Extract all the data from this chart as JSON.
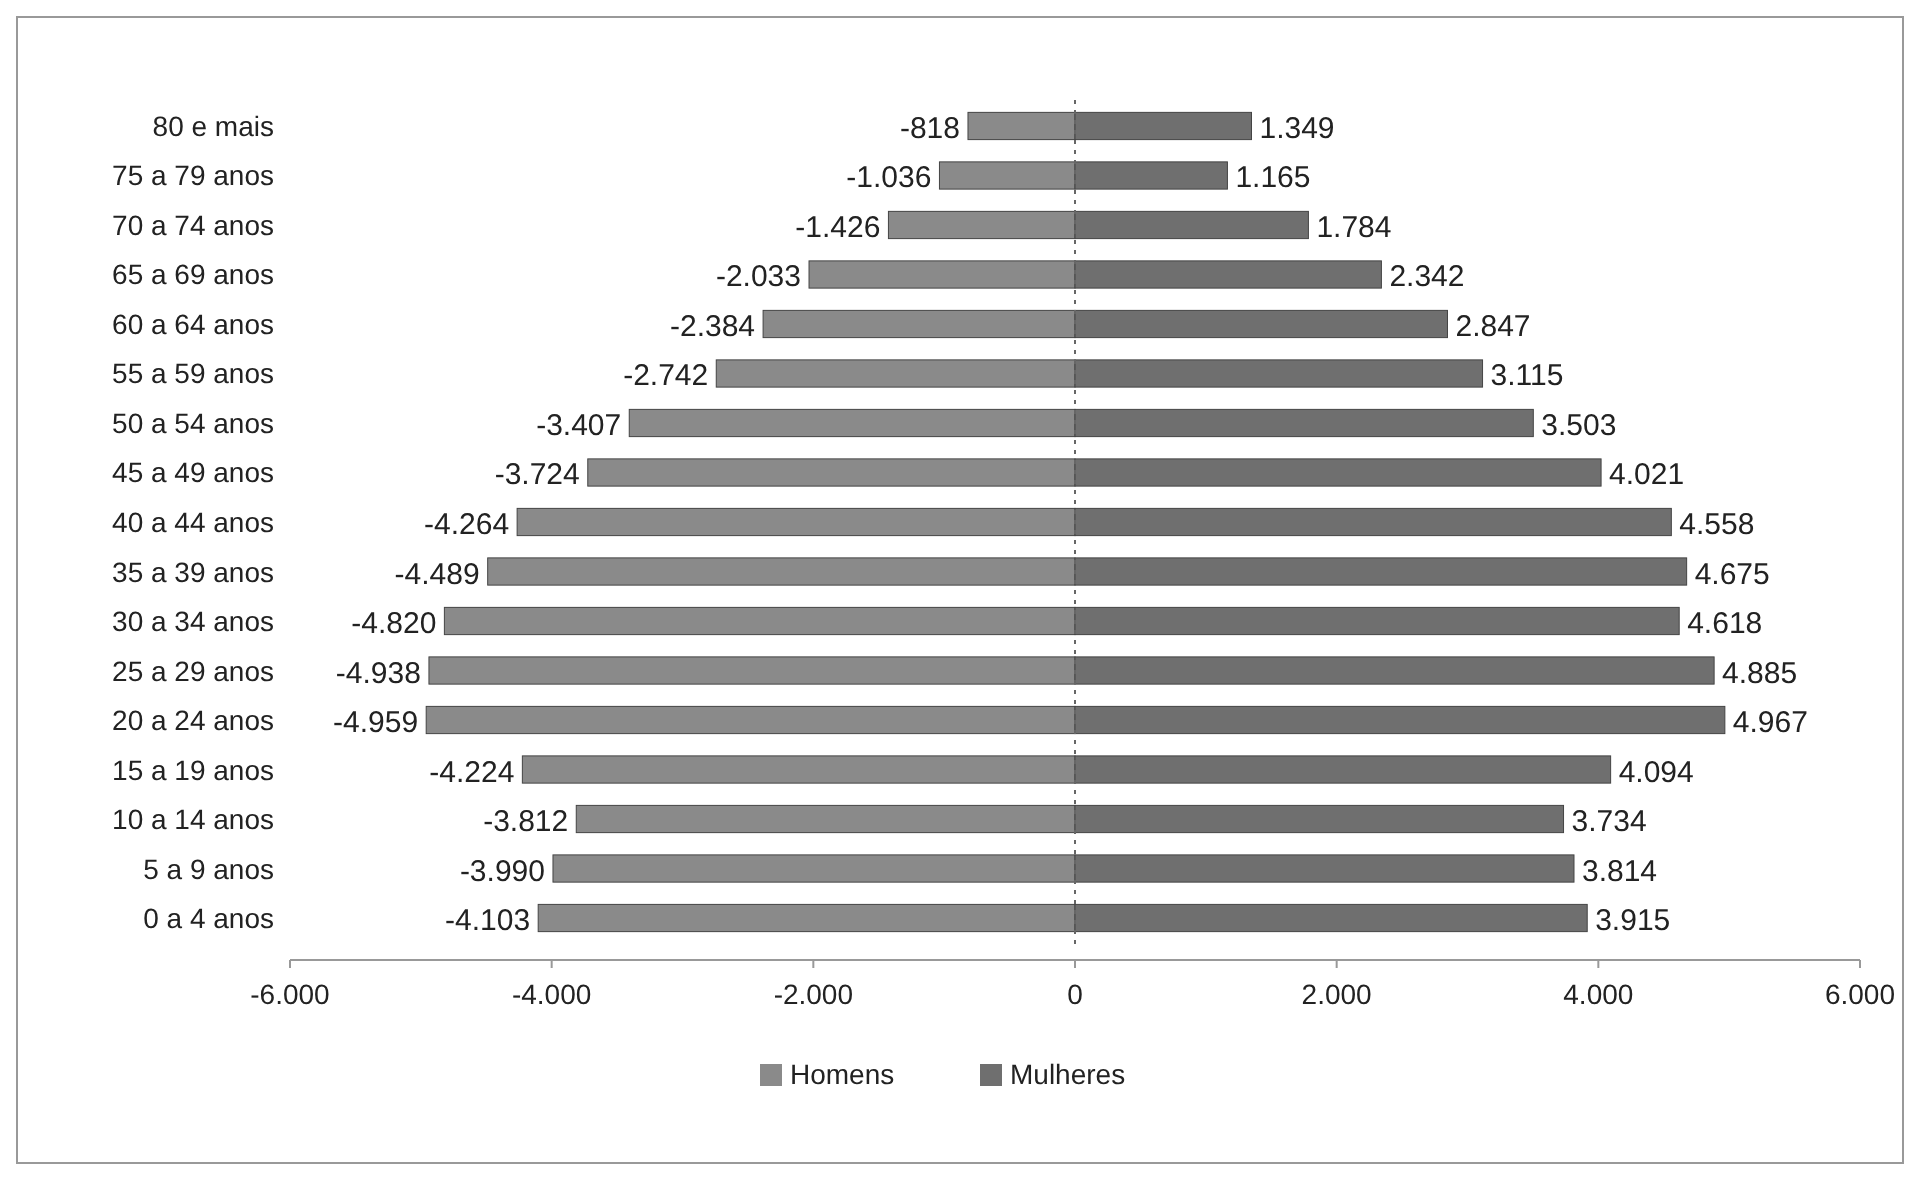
{
  "chart_data": {
    "type": "bar",
    "orientation": "horizontal",
    "stacked": true,
    "categories": [
      "80 e mais",
      "75 a 79 anos",
      "70 a 74 anos",
      "65 a 69 anos",
      "60 a 64 anos",
      "55 a 59 anos",
      "50 a 54 anos",
      "45 a 49 anos",
      "40 a 44 anos",
      "35 a 39 anos",
      "30 a 34 anos",
      "25 a 29 anos",
      "20 a 24 anos",
      "15 a 19 anos",
      "10 a 14 anos",
      "5 a 9 anos",
      "0 a 4 anos"
    ],
    "series": [
      {
        "name": "Homens",
        "color": "#8a8a8a",
        "values": [
          -818,
          -1036,
          -1426,
          -2033,
          -2384,
          -2742,
          -3407,
          -3724,
          -4264,
          -4489,
          -4820,
          -4938,
          -4959,
          -4224,
          -3812,
          -3990,
          -4103
        ],
        "value_labels": [
          "-818",
          "-1.036",
          "-1.426",
          "-2.033",
          "-2.384",
          "-2.742",
          "-3.407",
          "-3.724",
          "-4.264",
          "-4.489",
          "-4.820",
          "-4.938",
          "-4.959",
          "-4.224",
          "-3.812",
          "-3.990",
          "-4.103"
        ]
      },
      {
        "name": "Mulheres",
        "color": "#6f6f6f",
        "values": [
          1349,
          1165,
          1784,
          2342,
          2847,
          3115,
          3503,
          4021,
          4558,
          4675,
          4618,
          4885,
          4967,
          4094,
          3734,
          3814,
          3915
        ],
        "value_labels": [
          "1.349",
          "1.165",
          "1.784",
          "2.342",
          "2.847",
          "3.115",
          "3.503",
          "4.021",
          "4.558",
          "4.675",
          "4.618",
          "4.885",
          "4.967",
          "4.094",
          "3.734",
          "3.814",
          "3.915"
        ]
      }
    ],
    "xlim": [
      -6000,
      6000
    ],
    "xticks": [
      {
        "value": -6000,
        "label": "-6.000"
      },
      {
        "value": -4000,
        "label": "-4.000"
      },
      {
        "value": -2000,
        "label": "-2.000"
      },
      0,
      {
        "value": 2000,
        "label": "2.000"
      },
      {
        "value": 4000,
        "label": "4.000"
      },
      {
        "value": 6000,
        "label": "6.000"
      }
    ],
    "legend": "bottom"
  }
}
